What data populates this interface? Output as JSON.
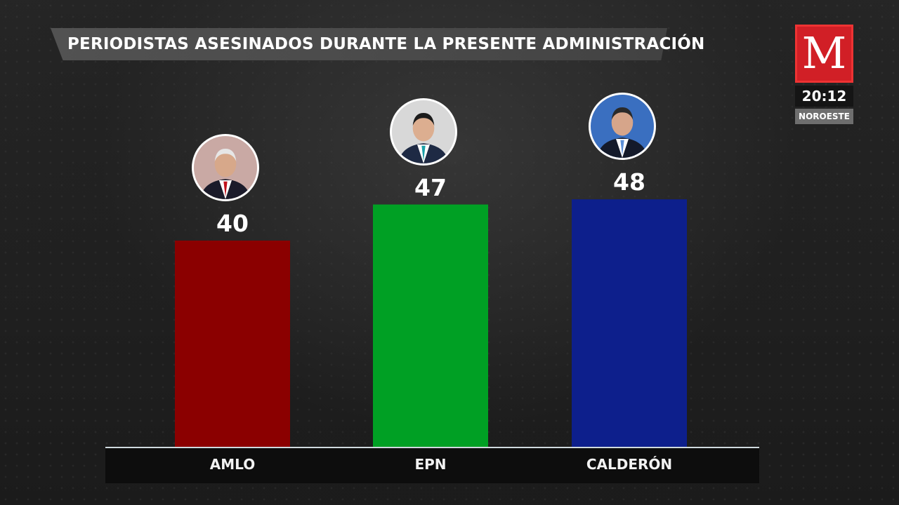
{
  "header": {
    "title": "PERIODISTAS ASESINADOS DURANTE LA PRESENTE ADMINISTRACIÓN"
  },
  "broadcast": {
    "logo_letter": "M",
    "time": "20:12",
    "region": "NOROESTE"
  },
  "chart_data": {
    "type": "bar",
    "title": "PERIODISTAS ASESINADOS DURANTE LA PRESENTE ADMINISTRACIÓN",
    "categories": [
      "AMLO",
      "EPN",
      "CALDERÓN"
    ],
    "values": [
      40,
      47,
      48
    ],
    "data_labels": [
      "40",
      "47",
      "48"
    ],
    "colors": [
      "#8b0000",
      "#00a024",
      "#0d1f8c"
    ],
    "xlabel": "",
    "ylabel": "",
    "ylim": [
      0,
      56
    ],
    "grid": false,
    "legend": "none",
    "annotations": [
      {
        "category": "AMLO",
        "icon": "portrait-amlo-icon"
      },
      {
        "category": "EPN",
        "icon": "portrait-epn-icon"
      },
      {
        "category": "CALDERÓN",
        "icon": "portrait-calderon-icon"
      }
    ]
  }
}
